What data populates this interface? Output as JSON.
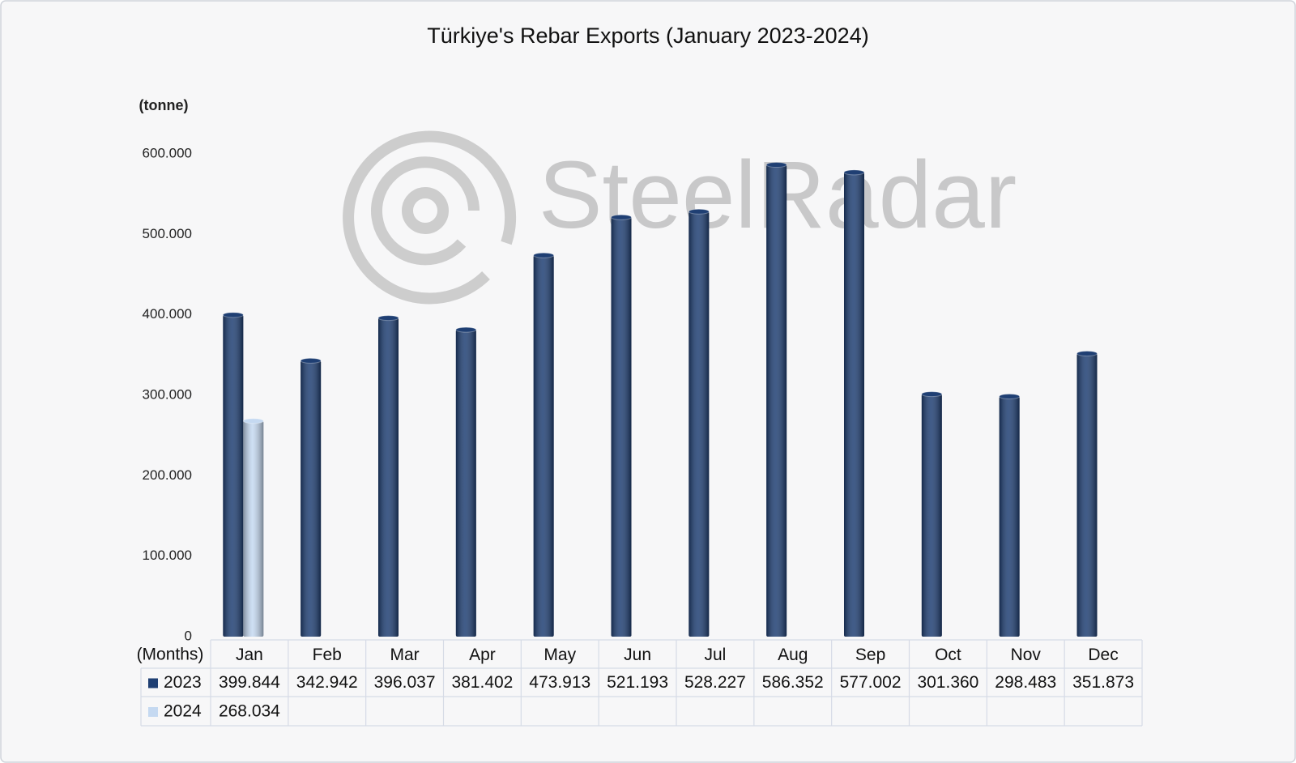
{
  "chart_data": {
    "type": "bar",
    "title": "Türkiye's Rebar Exports (January 2023-2024)",
    "y_label": "(tonne)",
    "x_label": "(Months)",
    "watermark": "SteelRadar",
    "categories": [
      "Jan",
      "Feb",
      "Mar",
      "Apr",
      "May",
      "Jun",
      "Jul",
      "Aug",
      "Sep",
      "Oct",
      "Nov",
      "Dec"
    ],
    "series": [
      {
        "name": "2023",
        "color": "#1f3f73",
        "values": [
          399844,
          342942,
          396037,
          381402,
          473913,
          521193,
          528227,
          586352,
          577002,
          301360,
          298483,
          351873
        ],
        "value_labels": [
          "399.844",
          "342.942",
          "396.037",
          "381.402",
          "473.913",
          "521.193",
          "528.227",
          "586.352",
          "577.002",
          "301.360",
          "298.483",
          "351.873"
        ]
      },
      {
        "name": "2024",
        "color": "#c5d9f1",
        "values": [
          268034,
          null,
          null,
          null,
          null,
          null,
          null,
          null,
          null,
          null,
          null,
          null
        ],
        "value_labels": [
          "268.034",
          null,
          null,
          null,
          null,
          null,
          null,
          null,
          null,
          null,
          null,
          null
        ]
      }
    ],
    "ylim": [
      0,
      600000
    ],
    "yticks": [
      0,
      {
        "value": 100000,
        "label": "100.000"
      },
      {
        "value": 200000,
        "label": "200.000"
      },
      {
        "value": 300000,
        "label": "300.000"
      },
      {
        "value": 400000,
        "label": "400.000"
      },
      {
        "value": 500000,
        "label": "500.000"
      },
      {
        "value": 600000,
        "label": "600.000"
      }
    ],
    "grid": false,
    "data_table": true
  }
}
